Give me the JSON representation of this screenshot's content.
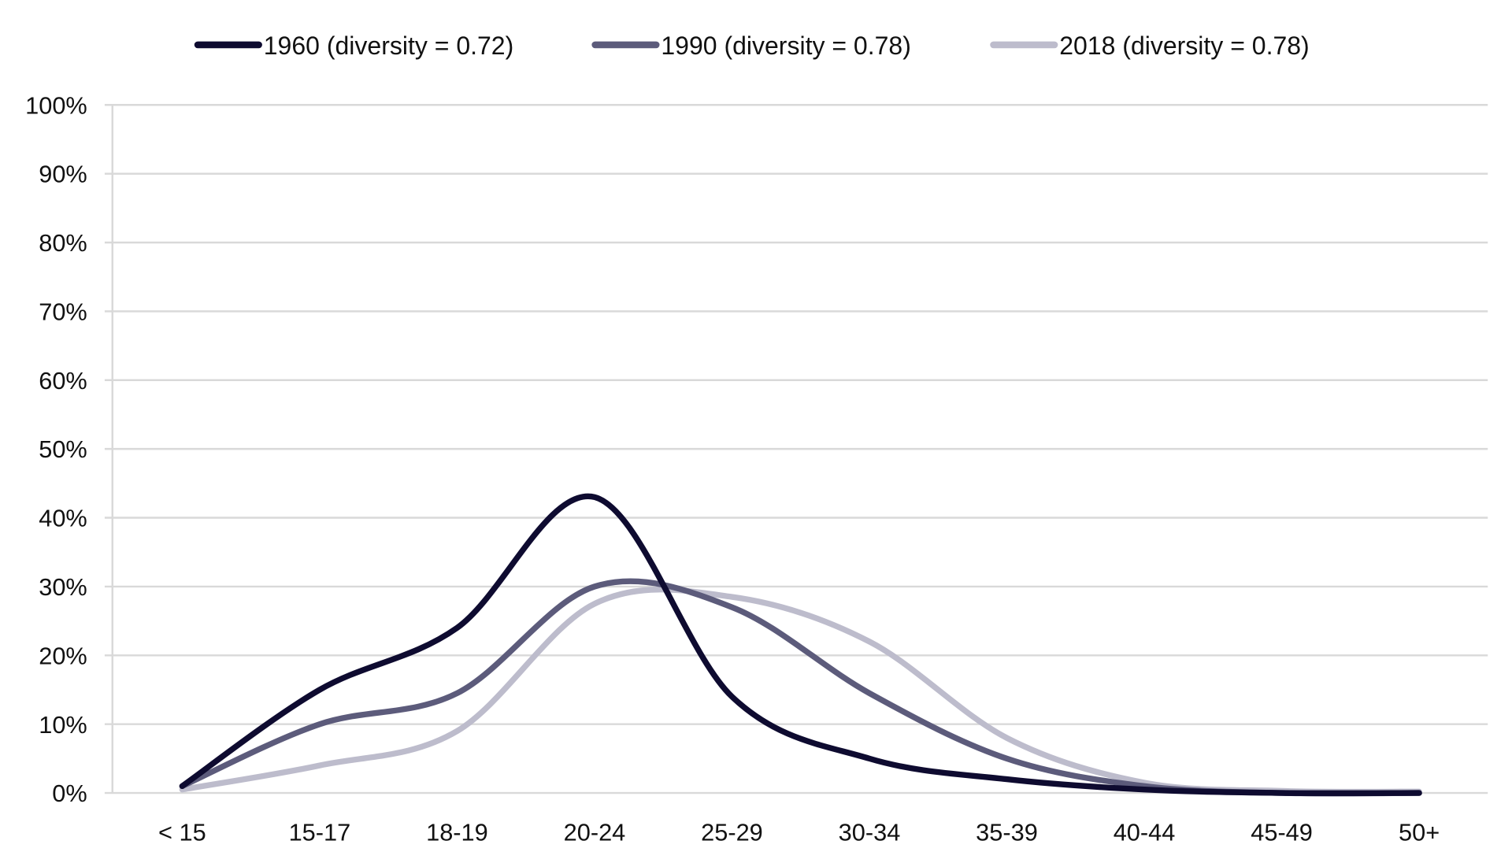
{
  "chart_data": {
    "type": "line",
    "title": "",
    "xlabel": "",
    "ylabel": "",
    "categories": [
      "< 15",
      "15-17",
      "18-19",
      "20-24",
      "25-29",
      "30-34",
      "35-39",
      "40-44",
      "45-49",
      "50+"
    ],
    "ylim": [
      0,
      100
    ],
    "yticks": [
      "0%",
      "10%",
      "20%",
      "30%",
      "40%",
      "50%",
      "60%",
      "70%",
      "80%",
      "90%",
      "100%"
    ],
    "grid": true,
    "smoothed": true,
    "legend_position": "top",
    "series": [
      {
        "name": "1960 (diversity = 0.72)",
        "color": "#0e0b30",
        "values": [
          1,
          15,
          24,
          43,
          14,
          5,
          2,
          0.5,
          0,
          0
        ]
      },
      {
        "name": "1990 (diversity = 0.78)",
        "color": "#5c5b7b",
        "values": [
          1,
          10,
          14.5,
          30,
          27,
          14.5,
          5,
          1,
          0,
          0
        ]
      },
      {
        "name": "2018 (diversity = 0.78)",
        "color": "#bdbccc",
        "values": [
          0.5,
          4,
          9,
          27.5,
          28.5,
          22,
          8,
          1.5,
          0.3,
          0.2
        ]
      }
    ]
  }
}
